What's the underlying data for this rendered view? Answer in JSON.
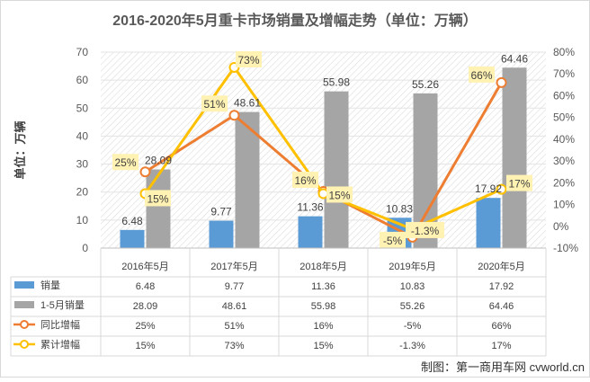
{
  "chart_data": {
    "type": "bar+line",
    "title": "2016-2020年5月重卡市场销量及增幅走势（单位：万辆）",
    "ylabel": "单位：万辆",
    "categories": [
      "2016年5月",
      "2017年5月",
      "2018年5月",
      "2019年5月",
      "2020年5月"
    ],
    "y_left": {
      "min": 0,
      "max": 70,
      "step": 10,
      "ticks": [
        "0",
        "10",
        "20",
        "30",
        "40",
        "50",
        "60",
        "70"
      ]
    },
    "y_right": {
      "min": -10,
      "max": 80,
      "step": 10,
      "ticks": [
        "-10%",
        "0%",
        "10%",
        "20%",
        "30%",
        "40%",
        "50%",
        "60%",
        "70%",
        "80%"
      ]
    },
    "series": [
      {
        "name": "销量",
        "kind": "bar",
        "axis": "left",
        "color": "#5B9BD5",
        "values": [
          6.48,
          9.77,
          11.36,
          10.83,
          17.92
        ],
        "labels": [
          "6.48",
          "9.77",
          "11.36",
          "10.83",
          "17.92"
        ]
      },
      {
        "name": "1-5月销量",
        "kind": "bar",
        "axis": "left",
        "color": "#A5A5A5",
        "values": [
          28.09,
          48.61,
          55.98,
          55.26,
          64.46
        ],
        "labels": [
          "28.09",
          "48.61",
          "55.98",
          "55.26",
          "64.46"
        ]
      },
      {
        "name": "同比增幅",
        "kind": "line",
        "axis": "right",
        "color": "#ED7D31",
        "values": [
          25,
          51,
          16,
          -5,
          66
        ],
        "labels": [
          "25%",
          "51%",
          "16%",
          "-5%",
          "66%"
        ]
      },
      {
        "name": "累计增幅",
        "kind": "line",
        "axis": "right",
        "color": "#FFC000",
        "values": [
          15,
          73,
          15,
          -1.3,
          17
        ],
        "labels": [
          "15%",
          "73%",
          "15%",
          "-1.3%",
          "17%"
        ]
      }
    ]
  },
  "credit": "制图：第一商用车网 cvworld.cn"
}
